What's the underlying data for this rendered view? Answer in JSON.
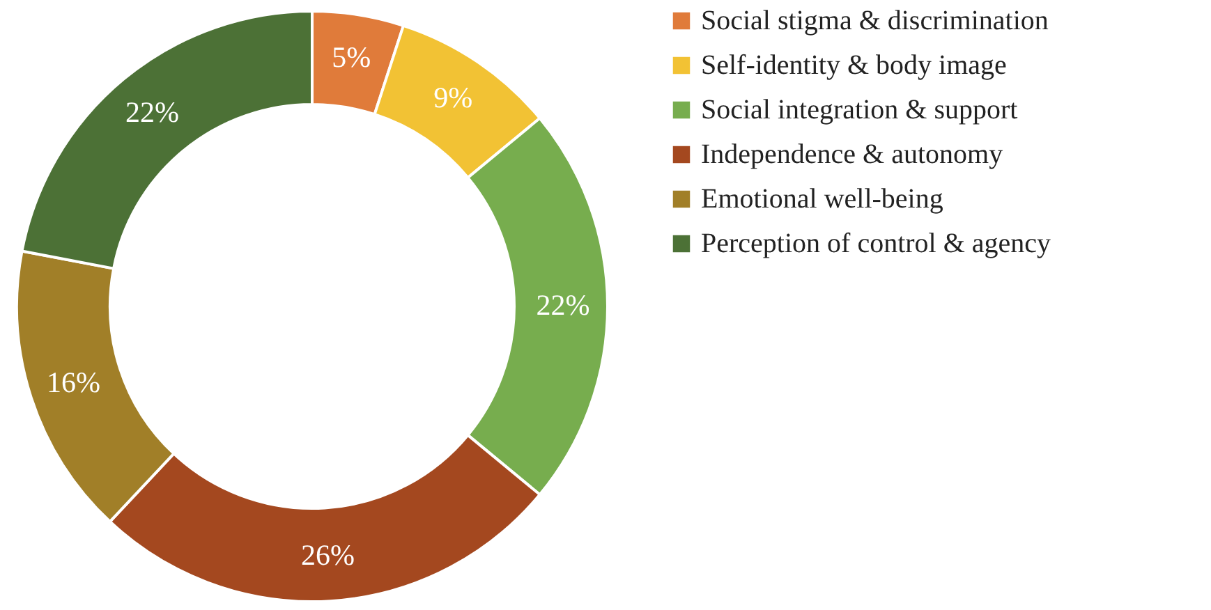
{
  "chart_data": {
    "type": "donut",
    "categories": [
      "Social stigma & discrimination",
      "Self-identity & body image",
      "Social integration & support",
      "Independence & autonomy",
      "Emotional well-being",
      "Perception of control & agency"
    ],
    "values": [
      5,
      9,
      22,
      26,
      16,
      22
    ],
    "colors": [
      "#e07b3a",
      "#f2c234",
      "#77ad4e",
      "#a4481f",
      "#a17f28",
      "#4c7136"
    ],
    "value_labels": [
      "5%",
      "9%",
      "22%",
      "26%",
      "16%",
      "22%"
    ],
    "legend": "right"
  }
}
